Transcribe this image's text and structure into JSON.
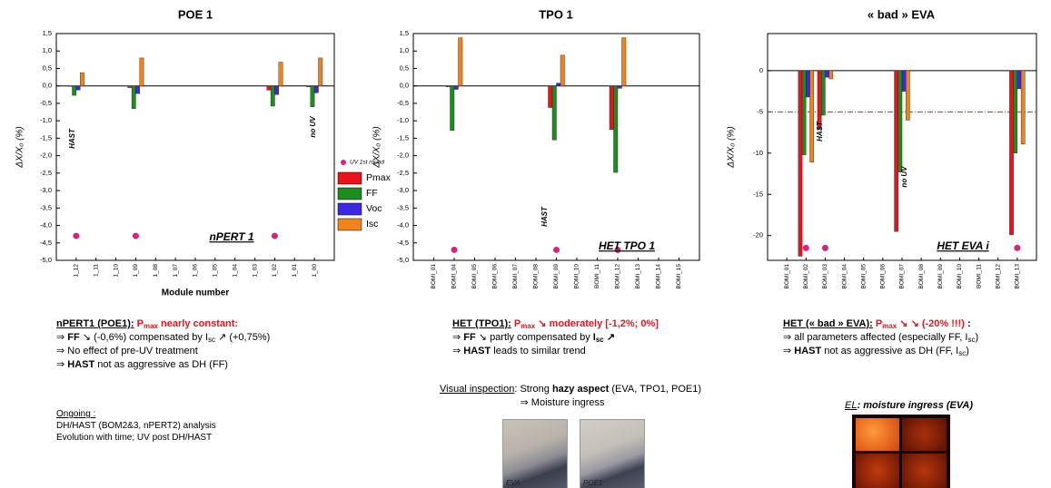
{
  "chart_data": [
    {
      "type": "bar",
      "title": "POE 1",
      "xlabel": "Module number",
      "ylabel": "ΔX/X₀ (%)",
      "label": "nPERT 1",
      "categories": [
        "1_12",
        "1_11",
        "1_10",
        "1_09",
        "1_08",
        "1_07",
        "1_06",
        "1_05",
        "1_04",
        "1_03",
        "1_02",
        "1_01",
        "1_00"
      ],
      "ylim": [
        -5,
        1.5
      ],
      "yticks": [
        {
          "value": -5,
          "label": "-5,0"
        },
        {
          "value": -4.5,
          "label": "-4,5"
        },
        {
          "value": -4,
          "label": "-4,0"
        },
        {
          "value": -3.5,
          "label": "-3,5"
        },
        {
          "value": -3,
          "label": "-3,0"
        },
        {
          "value": -2.5,
          "label": "-2,5"
        },
        {
          "value": -2,
          "label": "-2,0"
        },
        {
          "value": -1.5,
          "label": "-1,5"
        },
        {
          "value": -1,
          "label": "-1,0"
        },
        {
          "value": -0.5,
          "label": "-0,5"
        },
        {
          "value": 0,
          "label": "0,0"
        },
        {
          "value": 0.5,
          "label": "0,5"
        },
        {
          "value": 1,
          "label": "1,0"
        },
        {
          "value": 1.5,
          "label": "1,5"
        }
      ],
      "series": [
        {
          "name": "Pmax",
          "color": "#e8141c",
          "values": [
            0,
            null,
            null,
            -0.05,
            null,
            null,
            null,
            null,
            null,
            null,
            -0.12,
            null,
            -0.03
          ]
        },
        {
          "name": "FF",
          "color": "#1e8c1e",
          "values": [
            -0.27,
            null,
            null,
            -0.65,
            null,
            null,
            null,
            null,
            null,
            null,
            -0.58,
            null,
            -0.6
          ]
        },
        {
          "name": "Voc",
          "color": "#3c28e0",
          "values": [
            -0.12,
            null,
            null,
            -0.22,
            null,
            null,
            null,
            null,
            null,
            null,
            -0.25,
            null,
            -0.2
          ]
        },
        {
          "name": "Isc",
          "color": "#f0821e",
          "values": [
            0.38,
            null,
            null,
            0.8,
            null,
            null,
            null,
            null,
            null,
            null,
            0.68,
            null,
            0.8
          ]
        },
        {
          "name": "UV 1st round",
          "type": "scatter",
          "color": "#d6247a",
          "values": [
            -4.3,
            null,
            null,
            -4.3,
            null,
            null,
            null,
            null,
            null,
            null,
            -4.3,
            null,
            null
          ]
        }
      ],
      "legend": "right",
      "annotations": [
        {
          "text": "HAST",
          "color": "#000000"
        },
        {
          "text": "no UV",
          "color": "#000000"
        }
      ]
    },
    {
      "type": "bar",
      "title": "TPO 1",
      "ylabel": "ΔX/X₀ (%)",
      "label": "HET TPO 1",
      "categories": [
        "BOMI_01",
        "BOMI_04",
        "BOMI_05",
        "BOMI_06",
        "BOMI_07",
        "BOMI_08",
        "BOMI_09",
        "BOMI_10",
        "BOMI_11",
        "BOMI_12",
        "BOMI_13",
        "BOMI_14",
        "BOMI_15"
      ],
      "ylim": [
        -5,
        1.5
      ],
      "yticks": [
        {
          "value": -5,
          "label": "-5,0"
        },
        {
          "value": -4.5,
          "label": "-4,5"
        },
        {
          "value": -4,
          "label": "-4,0"
        },
        {
          "value": -3.5,
          "label": "-3,5"
        },
        {
          "value": -3,
          "label": "-3,0"
        },
        {
          "value": -2.5,
          "label": "-2,5"
        },
        {
          "value": -2,
          "label": "-2,0"
        },
        {
          "value": -1.5,
          "label": "-1,5"
        },
        {
          "value": -1,
          "label": "-1,0"
        },
        {
          "value": -0.5,
          "label": "-0,5"
        },
        {
          "value": 0,
          "label": "0,0"
        },
        {
          "value": 0.5,
          "label": "0,5"
        },
        {
          "value": 1,
          "label": "1,0"
        },
        {
          "value": 1.5,
          "label": "1,5"
        }
      ],
      "series": [
        {
          "name": "Pmax",
          "color": "#e8141c",
          "values": [
            null,
            -0.03,
            null,
            null,
            null,
            null,
            -0.62,
            null,
            null,
            -1.25,
            null,
            null,
            null
          ]
        },
        {
          "name": "FF",
          "color": "#1e8c1e",
          "values": [
            null,
            -1.28,
            null,
            null,
            null,
            null,
            -1.55,
            null,
            null,
            -2.48,
            null,
            null,
            null
          ]
        },
        {
          "name": "Voc",
          "color": "#3c28e0",
          "values": [
            null,
            -0.1,
            null,
            null,
            null,
            null,
            0.08,
            null,
            null,
            -0.07,
            null,
            null,
            null
          ]
        },
        {
          "name": "Isc",
          "color": "#f0821e",
          "values": [
            null,
            1.38,
            null,
            null,
            null,
            null,
            0.88,
            null,
            null,
            1.38,
            null,
            null,
            null
          ]
        },
        {
          "name": "UV 1st round",
          "type": "scatter",
          "color": "#d6247a",
          "values": [
            null,
            -4.7,
            null,
            null,
            null,
            null,
            -4.7,
            null,
            null,
            -4.7,
            null,
            null,
            null
          ]
        }
      ],
      "annotations": [
        {
          "text": "HAST",
          "color": "#000000"
        }
      ]
    },
    {
      "type": "bar",
      "title": "« bad » EVA",
      "ylabel": "ΔX/X₀ (%)",
      "label": "HET EVA i",
      "categories": [
        "BOMI_01",
        "BOMI_02",
        "BOMI_03",
        "BOMI_04",
        "BOMI_05",
        "BOMI_06",
        "BOMI_07",
        "BOMI_08",
        "BOMI_09",
        "BOMI_10",
        "BOMI_11",
        "BOMI_12",
        "BOMI_13"
      ],
      "ylim": [
        -23,
        4.5
      ],
      "yticks": [
        0,
        -5,
        -10,
        -15,
        -20
      ],
      "reference_line": {
        "value": -5,
        "color": "#e0201c"
      },
      "series": [
        {
          "name": "Pmax",
          "color": "#e8141c",
          "values": [
            null,
            -22.5,
            -7.1,
            null,
            null,
            null,
            -19.5,
            null,
            null,
            null,
            null,
            null,
            -19.9
          ]
        },
        {
          "name": "FF",
          "color": "#1e8c1e",
          "values": [
            null,
            -10.2,
            -5.4,
            null,
            null,
            null,
            -12.3,
            null,
            null,
            null,
            null,
            null,
            -10
          ]
        },
        {
          "name": "Voc",
          "color": "#3c28e0",
          "values": [
            null,
            -3.2,
            -0.8,
            null,
            null,
            null,
            -2.5,
            null,
            null,
            null,
            null,
            null,
            -2.2
          ]
        },
        {
          "name": "Isc",
          "color": "#f0821e",
          "values": [
            null,
            -11.1,
            -1.0,
            null,
            null,
            null,
            -6.0,
            null,
            null,
            null,
            null,
            null,
            -8.9
          ]
        },
        {
          "name": "UV 1st round",
          "type": "scatter",
          "color": "#d6247a",
          "values": [
            null,
            -21.5,
            -21.5,
            null,
            null,
            null,
            null,
            null,
            null,
            null,
            null,
            null,
            -21.5
          ]
        }
      ],
      "annotations": [
        {
          "text": "HAST",
          "color": "#000000"
        },
        {
          "text": "no UV",
          "color": "#8a2aa0"
        }
      ]
    }
  ],
  "notes": {
    "poe1": [
      [
        "nPERT1 (POE1):",
        " P",
        "max",
        " nearly constant:"
      ],
      [
        "⇒ ",
        "FF",
        " ↘ (-0,6%) compensated by I",
        "sc",
        " ↗ (+0,75%)"
      ],
      [
        "⇒ No effect of pre-UV treatment"
      ],
      [
        "⇒ ",
        "HAST",
        " not as aggressive as DH (FF)"
      ]
    ],
    "ongoing": [
      "Ongoing :",
      "DH/HAST (BOM2&3, nPERT2) analysis",
      "Evolution with time; UV post DH/HAST"
    ],
    "tpo1": [
      [
        "HET (TPO1):",
        " P",
        "max",
        " ↘ moderately [-1,2%; 0%]"
      ],
      [
        "⇒ ",
        "FF",
        " ↘ partly compensated by ",
        "I",
        "sc",
        " ↗"
      ],
      [
        "⇒ ",
        "HAST",
        " leads to similar trend"
      ]
    ],
    "visual": [
      [
        "Visual inspection",
        ": Strong ",
        "hazy aspect",
        " (EVA, TPO1, POE1)"
      ],
      [
        "⇒ Moisture ingress"
      ]
    ],
    "photos": [
      "EVA",
      "POE1"
    ],
    "eva": [
      [
        "HET (« bad » EVA):",
        " P",
        "max",
        " ↘ ↘ (-20% !!!)",
        " :"
      ],
      [
        "⇒ all parameters affected (especially FF, I",
        "sc",
        ")"
      ],
      [
        "⇒ ",
        "HAST",
        " not as aggressive as DH (FF, I",
        "sc",
        ")"
      ]
    ],
    "el": [
      "EL",
      ": moisture ingress (EVA)"
    ]
  }
}
